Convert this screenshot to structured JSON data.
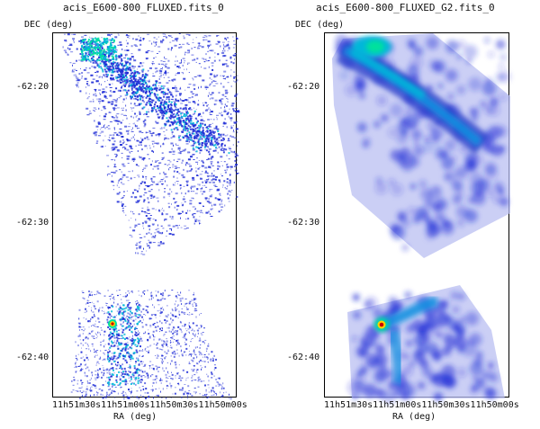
{
  "panels": [
    {
      "title": "acis_E600-800_FLUXED.fits_0",
      "dec_axis_label": "DEC (deg)",
      "ra_axis_label": "RA (deg)",
      "y_ticks": [
        "-62:20",
        "-62:30",
        "-62:40"
      ],
      "x_ticks": [
        "11h51m30s",
        "11h51m00s",
        "11h50m30s",
        "11h50m00s"
      ],
      "x_tick_label_joined": "11h51m30s11h51m00s11h50m30s11h50m00s"
    },
    {
      "title": "acis_E600-800_FLUXED_G2.fits_0",
      "dec_axis_label": "DEC (deg)",
      "ra_axis_label": "RA (deg)",
      "y_ticks": [
        "-62:20",
        "-62:30",
        "-62:40"
      ],
      "x_ticks": [
        "11h51m30s",
        "11h51m00s",
        "11h50m30s",
        "11h50m00s"
      ],
      "x_tick_label_joined": "11h51m30s11h51m00s11h50m30s11h50m00s"
    }
  ],
  "colors": {
    "low": "#1d2bd6",
    "mid": "#00b7d9",
    "high": "#00e29c",
    "peak_center": "#c80000",
    "peak_ring": "#ffd200"
  }
}
